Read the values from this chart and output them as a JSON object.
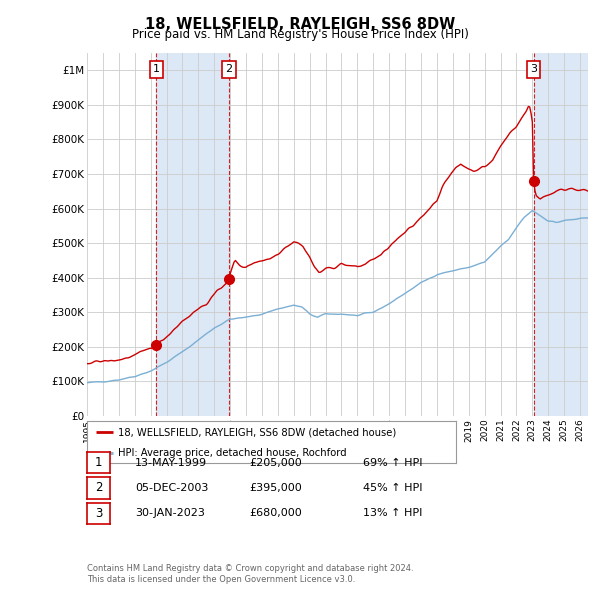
{
  "title": "18, WELLSFIELD, RAYLEIGH, SS6 8DW",
  "subtitle": "Price paid vs. HM Land Registry's House Price Index (HPI)",
  "ylim": [
    0,
    1050000
  ],
  "xlim_start": 1995.0,
  "xlim_end": 2026.5,
  "background_color": "#ffffff",
  "grid_color": "#cccccc",
  "hpi_color": "#7bafd4",
  "hpi_fill_color": "#dce8f5",
  "price_color": "#cc0000",
  "ownership_fill_color": "#dce8f5",
  "legend_label_price": "18, WELLSFIELD, RAYLEIGH, SS6 8DW (detached house)",
  "legend_label_hpi": "HPI: Average price, detached house, Rochford",
  "sales": [
    {
      "label": "1",
      "date": "13-MAY-1999",
      "price": 205000,
      "pct": "69%",
      "direction": "↑",
      "year_x": 1999.36
    },
    {
      "label": "2",
      "date": "05-DEC-2003",
      "price": 395000,
      "pct": "45%",
      "direction": "↑",
      "year_x": 2003.92
    },
    {
      "label": "3",
      "date": "30-JAN-2023",
      "price": 680000,
      "pct": "13%",
      "direction": "↑",
      "year_x": 2023.08
    }
  ],
  "footer_line1": "Contains HM Land Registry data © Crown copyright and database right 2024.",
  "footer_line2": "This data is licensed under the Open Government Licence v3.0.",
  "yticks": [
    0,
    100000,
    200000,
    300000,
    400000,
    500000,
    600000,
    700000,
    800000,
    900000,
    1000000
  ],
  "ytick_labels": [
    "£0",
    "£100K",
    "£200K",
    "£300K",
    "£400K",
    "£500K",
    "£600K",
    "£700K",
    "£800K",
    "£900K",
    "£1M"
  ],
  "hpi_keypoints": [
    [
      1995.0,
      95000
    ],
    [
      1996.0,
      100000
    ],
    [
      1997.0,
      105000
    ],
    [
      1998.0,
      115000
    ],
    [
      1999.0,
      130000
    ],
    [
      2000.0,
      155000
    ],
    [
      2001.0,
      185000
    ],
    [
      2002.0,
      220000
    ],
    [
      2003.0,
      255000
    ],
    [
      2004.0,
      280000
    ],
    [
      2005.0,
      285000
    ],
    [
      2006.0,
      295000
    ],
    [
      2007.0,
      310000
    ],
    [
      2008.0,
      320000
    ],
    [
      2008.5,
      315000
    ],
    [
      2009.0,
      295000
    ],
    [
      2009.5,
      285000
    ],
    [
      2010.0,
      295000
    ],
    [
      2011.0,
      295000
    ],
    [
      2012.0,
      290000
    ],
    [
      2013.0,
      300000
    ],
    [
      2014.0,
      325000
    ],
    [
      2015.0,
      355000
    ],
    [
      2016.0,
      385000
    ],
    [
      2017.0,
      410000
    ],
    [
      2018.0,
      420000
    ],
    [
      2019.0,
      430000
    ],
    [
      2020.0,
      445000
    ],
    [
      2021.0,
      490000
    ],
    [
      2021.5,
      510000
    ],
    [
      2022.0,
      545000
    ],
    [
      2022.5,
      575000
    ],
    [
      2023.0,
      595000
    ],
    [
      2023.5,
      580000
    ],
    [
      2024.0,
      565000
    ],
    [
      2024.5,
      560000
    ],
    [
      2025.0,
      565000
    ],
    [
      2025.5,
      568000
    ],
    [
      2026.0,
      570000
    ],
    [
      2026.5,
      572000
    ]
  ],
  "price_keypoints": [
    [
      1995.0,
      155000
    ],
    [
      1996.0,
      158000
    ],
    [
      1997.0,
      162000
    ],
    [
      1997.5,
      168000
    ],
    [
      1998.0,
      175000
    ],
    [
      1998.5,
      185000
    ],
    [
      1999.36,
      205000
    ],
    [
      2000.0,
      230000
    ],
    [
      2001.0,
      275000
    ],
    [
      2002.0,
      310000
    ],
    [
      2002.5,
      325000
    ],
    [
      2003.0,
      350000
    ],
    [
      2003.5,
      375000
    ],
    [
      2003.92,
      395000
    ],
    [
      2004.0,
      410000
    ],
    [
      2004.3,
      450000
    ],
    [
      2004.6,
      435000
    ],
    [
      2005.0,
      430000
    ],
    [
      2005.5,
      445000
    ],
    [
      2006.0,
      450000
    ],
    [
      2006.5,
      455000
    ],
    [
      2007.0,
      470000
    ],
    [
      2007.5,
      490000
    ],
    [
      2008.0,
      505000
    ],
    [
      2008.3,
      500000
    ],
    [
      2008.6,
      490000
    ],
    [
      2009.0,
      460000
    ],
    [
      2009.3,
      430000
    ],
    [
      2009.6,
      415000
    ],
    [
      2010.0,
      425000
    ],
    [
      2010.5,
      430000
    ],
    [
      2011.0,
      440000
    ],
    [
      2011.5,
      435000
    ],
    [
      2012.0,
      430000
    ],
    [
      2012.5,
      440000
    ],
    [
      2013.0,
      455000
    ],
    [
      2013.5,
      465000
    ],
    [
      2014.0,
      490000
    ],
    [
      2014.5,
      510000
    ],
    [
      2015.0,
      530000
    ],
    [
      2015.5,
      550000
    ],
    [
      2016.0,
      575000
    ],
    [
      2016.5,
      600000
    ],
    [
      2017.0,
      625000
    ],
    [
      2017.3,
      660000
    ],
    [
      2017.6,
      680000
    ],
    [
      2017.9,
      700000
    ],
    [
      2018.2,
      720000
    ],
    [
      2018.5,
      730000
    ],
    [
      2018.8,
      720000
    ],
    [
      2019.0,
      715000
    ],
    [
      2019.3,
      710000
    ],
    [
      2019.6,
      715000
    ],
    [
      2020.0,
      720000
    ],
    [
      2020.5,
      740000
    ],
    [
      2021.0,
      780000
    ],
    [
      2021.3,
      800000
    ],
    [
      2021.6,
      820000
    ],
    [
      2022.0,
      840000
    ],
    [
      2022.3,
      860000
    ],
    [
      2022.6,
      880000
    ],
    [
      2022.8,
      900000
    ],
    [
      2022.9,
      880000
    ],
    [
      2023.0,
      850000
    ],
    [
      2023.08,
      680000
    ],
    [
      2023.2,
      640000
    ],
    [
      2023.5,
      630000
    ],
    [
      2024.0,
      640000
    ],
    [
      2024.5,
      650000
    ],
    [
      2025.0,
      655000
    ],
    [
      2025.5,
      660000
    ],
    [
      2026.0,
      655000
    ],
    [
      2026.5,
      650000
    ]
  ]
}
